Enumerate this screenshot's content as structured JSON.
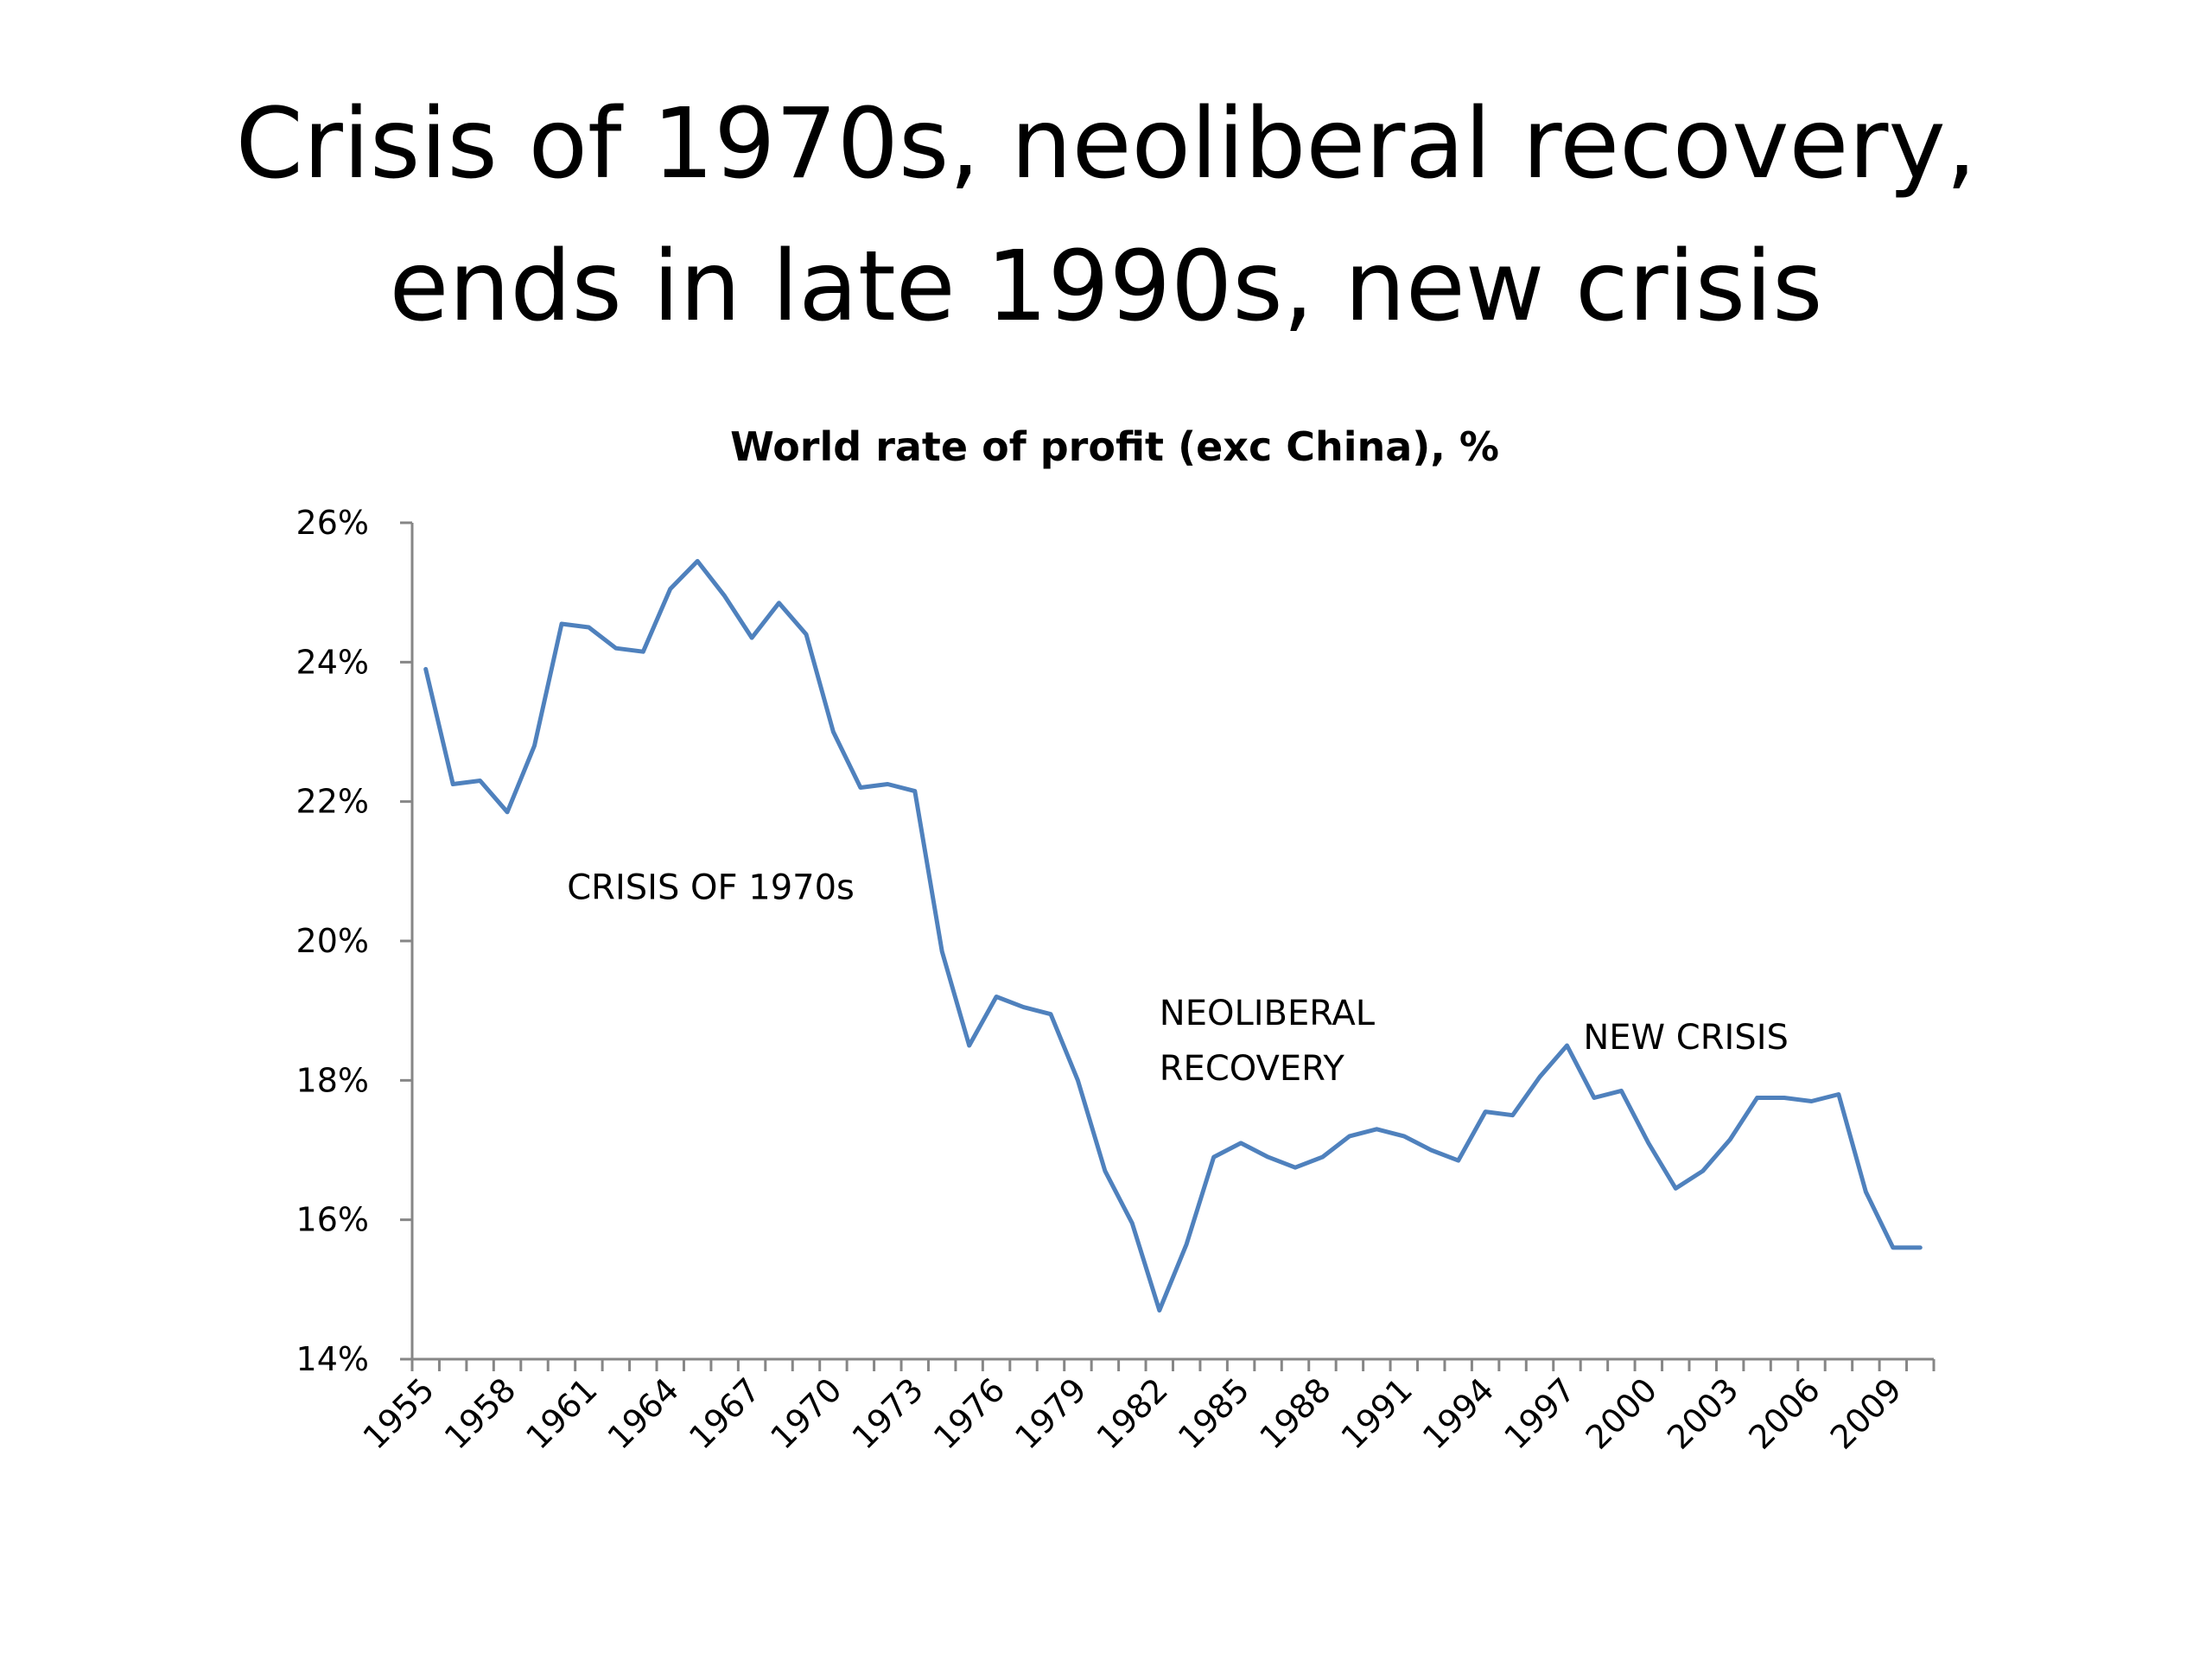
{
  "slide": {
    "title_line1": "Crisis of 1970s, neoliberal recovery,",
    "title_line2": "ends in late 1990s, new crisis"
  },
  "chart_data": {
    "type": "line",
    "title": "World rate of profit (exc China), %",
    "xlabel": "",
    "ylabel": "",
    "ylim": [
      14,
      26
    ],
    "ytick_labels": [
      "14%",
      "16%",
      "18%",
      "20%",
      "22%",
      "24%",
      "26%"
    ],
    "ytick_values": [
      14,
      16,
      18,
      20,
      22,
      24,
      26
    ],
    "xtick_labels": [
      "1955",
      "1958",
      "1961",
      "1964",
      "1967",
      "1970",
      "1973",
      "1976",
      "1979",
      "1982",
      "1985",
      "1988",
      "1991",
      "1994",
      "1997",
      "2000",
      "2003",
      "2006",
      "2009"
    ],
    "grid": false,
    "legend": "none",
    "line_color": "#4F81BD",
    "x": [
      1955,
      1956,
      1957,
      1958,
      1959,
      1960,
      1961,
      1962,
      1963,
      1964,
      1965,
      1966,
      1967,
      1968,
      1969,
      1970,
      1971,
      1972,
      1973,
      1974,
      1975,
      1976,
      1977,
      1978,
      1979,
      1980,
      1981,
      1982,
      1983,
      1984,
      1985,
      1986,
      1987,
      1988,
      1989,
      1990,
      1991,
      1992,
      1993,
      1994,
      1995,
      1996,
      1997,
      1998,
      1999,
      2000,
      2001,
      2002,
      2003,
      2004,
      2005,
      2006,
      2007,
      2008,
      2009,
      2010
    ],
    "series": [
      {
        "values": [
          23.9,
          22.25,
          22.3,
          21.85,
          22.8,
          24.55,
          24.5,
          24.2,
          24.15,
          25.05,
          25.45,
          24.95,
          24.35,
          24.85,
          24.4,
          23.0,
          22.2,
          22.25,
          22.15,
          19.85,
          18.5,
          19.2,
          19.05,
          18.95,
          18.0,
          16.7,
          15.95,
          14.7,
          15.65,
          16.9,
          17.1,
          16.9,
          16.75,
          16.9,
          17.2,
          17.3,
          17.2,
          17.0,
          16.85,
          17.55,
          17.5,
          18.05,
          18.5,
          17.75,
          17.85,
          17.1,
          16.45,
          16.7,
          17.15,
          17.75,
          17.75,
          17.7,
          17.8,
          16.4,
          15.6,
          15.6
        ]
      }
    ],
    "annotations": [
      {
        "text": "CRISIS OF 1970s",
        "lines": [
          "CRISIS OF 1970s"
        ],
        "x": 1960.2,
        "y": 20.6
      },
      {
        "text": "NEOLIBERAL RECOVERY",
        "lines": [
          "NEOLIBERAL",
          "RECOVERY"
        ],
        "x": 1982.0,
        "y": 18.8
      },
      {
        "text": "NEW CRISIS",
        "lines": [
          "NEW CRISIS"
        ],
        "x": 1997.6,
        "y": 18.45
      }
    ]
  }
}
